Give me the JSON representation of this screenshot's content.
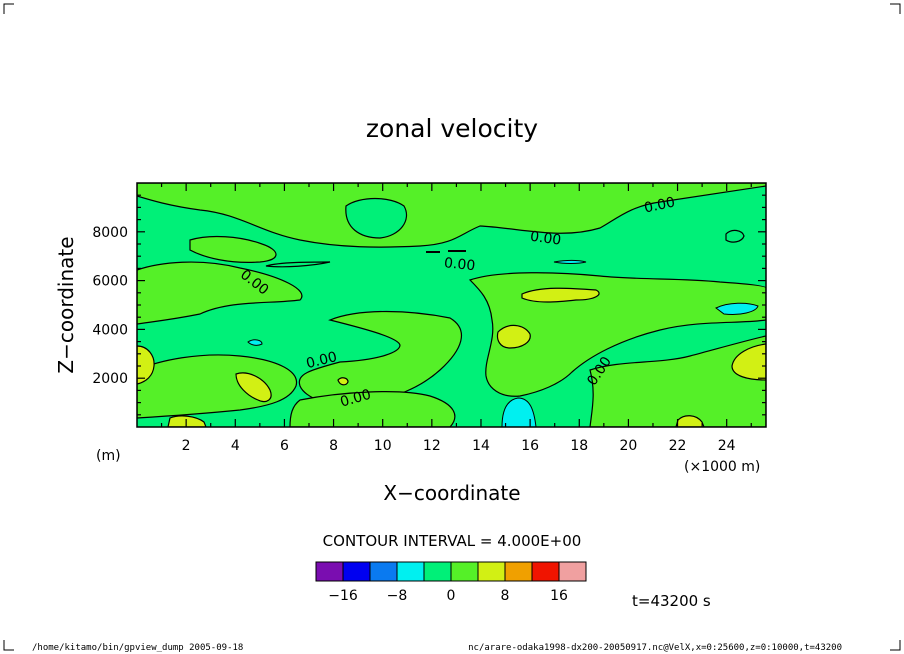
{
  "chart_data": {
    "type": "contour",
    "title": "zonal velocity",
    "xlabel": "X−coordinate",
    "ylabel": "Z−coordinate",
    "x_unit": "(×1000 m)",
    "y_unit": "(m)",
    "xlim": [
      0,
      25.6
    ],
    "ylim": [
      0,
      10000
    ],
    "x_ticks": [
      "2",
      "4",
      "6",
      "8",
      "10",
      "12",
      "14",
      "16",
      "18",
      "20",
      "22",
      "24"
    ],
    "x_tick_values": [
      2,
      4,
      6,
      8,
      10,
      12,
      14,
      16,
      18,
      20,
      22,
      24
    ],
    "y_ticks": [
      "2000",
      "4000",
      "6000",
      "8000"
    ],
    "y_tick_values": [
      2000,
      4000,
      6000,
      8000
    ],
    "contour_labels": [
      "0.00",
      "0.00",
      "0.00",
      "0.00",
      "0.00",
      "0.00",
      "0.00",
      "0.00"
    ],
    "contour_interval": "CONTOUR INTERVAL = 4.000E+00",
    "time_label": "t=43200 s",
    "colorbar": {
      "colors": [
        "#7a0db0",
        "#0000f0",
        "#0a7af0",
        "#00f0f0",
        "#00f078",
        "#55f028",
        "#d2f014",
        "#f0a000",
        "#f01400",
        "#f0a0a0"
      ],
      "tick_labels": [
        "−16",
        "−8",
        "0",
        "8",
        "16"
      ],
      "tick_values": [
        -16,
        -8,
        0,
        8,
        16
      ],
      "range": [
        -20,
        20
      ]
    }
  },
  "footer": {
    "left": "/home/kitamo/bin/gpview_dump  2005-09-18",
    "right": "nc/arare-odaka1998-dx200-20050917.nc@VelX,x=0:25600,z=0:10000,t=43200"
  }
}
